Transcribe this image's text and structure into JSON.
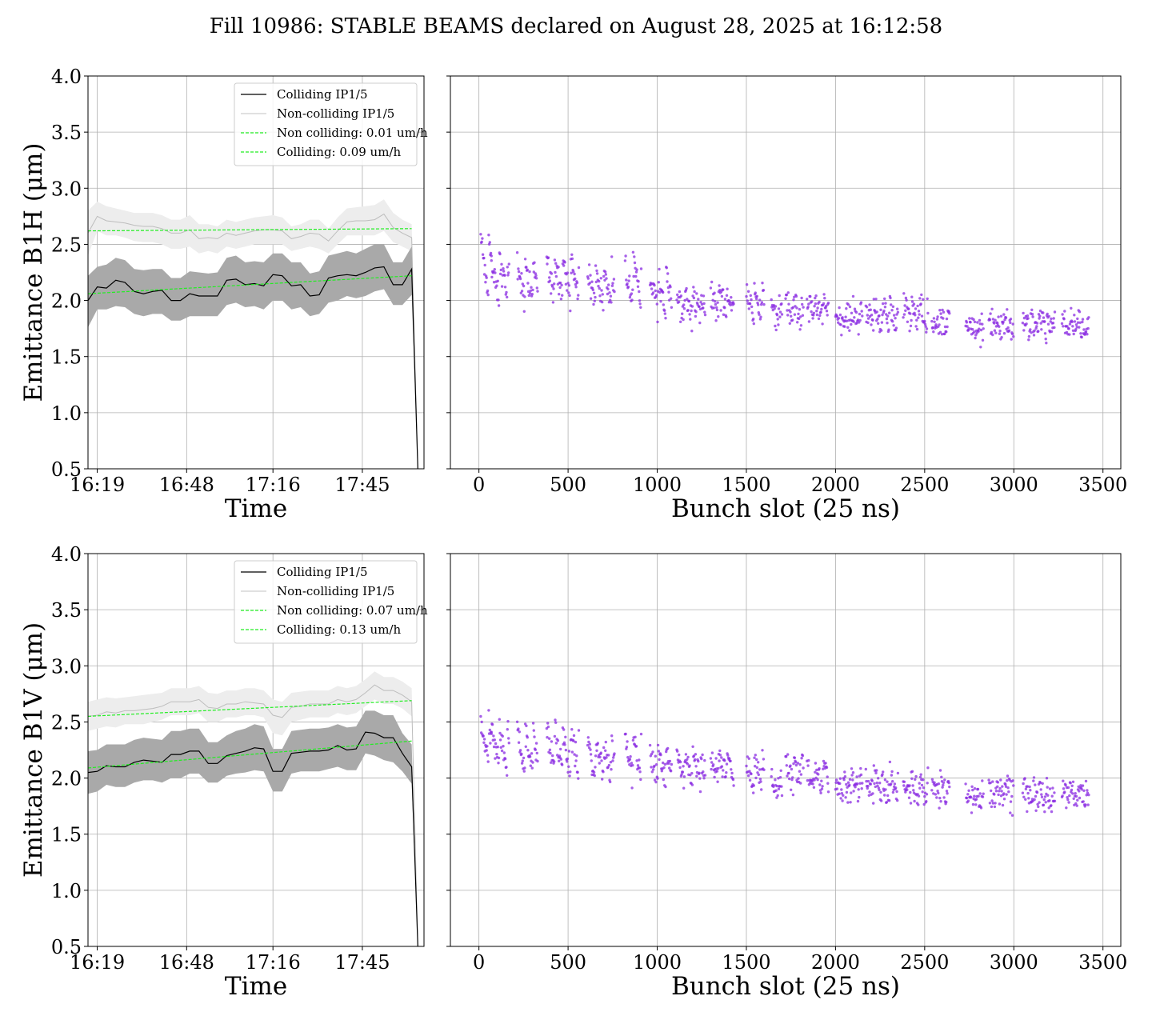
{
  "figure": {
    "title": "Fill 10986: STABLE BEAMS declared on August 28, 2025 at 16:12:58"
  },
  "colors": {
    "colliding": "#000000",
    "colliding_band": "#a9a9a9",
    "non_colliding": "#bdbdbd",
    "non_colliding_band": "#ededed",
    "fit": "#22ee22",
    "scatter": "#8a2be2",
    "grid": "#b0b0b0"
  },
  "chart_data": [
    {
      "type": "line",
      "name": "time-b1h",
      "xlabel": "Time",
      "ylabel": "Emittance B1H (μm)",
      "ylim": [
        0.5,
        4.0
      ],
      "yticks": [
        "0.5",
        "1.0",
        "1.5",
        "2.0",
        "2.5",
        "3.0",
        "3.5",
        "4.0"
      ],
      "xlim": [
        -3,
        106
      ],
      "xticks": [
        {
          "x": 0,
          "label": "16:19"
        },
        {
          "x": 29,
          "label": "16:48"
        },
        {
          "x": 57,
          "label": "17:16"
        },
        {
          "x": 86,
          "label": "17:45"
        }
      ],
      "grid": true,
      "legend": {
        "position": "top-right",
        "entries": [
          {
            "label": "Colliding IP1/5",
            "style": "colliding"
          },
          {
            "label": "Non-colliding IP1/5",
            "style": "non_colliding"
          },
          {
            "label": "Non colliding: 0.01 um/h",
            "style": "fit"
          },
          {
            "label": "Colliding: 0.09 um/h",
            "style": "fit"
          }
        ]
      },
      "x": [
        -3,
        0,
        3,
        6,
        9,
        12,
        15,
        18,
        21,
        24,
        27,
        30,
        33,
        36,
        39,
        42,
        45,
        48,
        51,
        54,
        57,
        60,
        63,
        66,
        69,
        72,
        75,
        78,
        81,
        84,
        87,
        90,
        93,
        96,
        99,
        102,
        104
      ],
      "series": [
        {
          "role": "colliding",
          "mean": [
            2.0,
            2.12,
            2.11,
            2.18,
            2.16,
            2.08,
            2.06,
            2.08,
            2.09,
            2.0,
            2.0,
            2.06,
            2.04,
            2.04,
            2.04,
            2.18,
            2.19,
            2.14,
            2.15,
            2.13,
            2.23,
            2.22,
            2.13,
            2.14,
            2.04,
            2.05,
            2.2,
            2.22,
            2.23,
            2.22,
            2.25,
            2.29,
            2.3,
            2.14,
            2.14,
            2.28,
            0.5
          ],
          "lower": [
            1.76,
            1.92,
            1.92,
            1.95,
            1.94,
            1.88,
            1.86,
            1.88,
            1.88,
            1.82,
            1.82,
            1.86,
            1.86,
            1.86,
            1.86,
            1.96,
            1.98,
            1.94,
            1.95,
            1.92,
            2.0,
            2.0,
            1.92,
            1.94,
            1.86,
            1.88,
            1.98,
            2.0,
            2.04,
            2.02,
            2.04,
            2.08,
            2.1,
            1.96,
            1.96,
            2.05,
            0.5
          ],
          "upper": [
            2.22,
            2.3,
            2.32,
            2.38,
            2.36,
            2.28,
            2.27,
            2.28,
            2.28,
            2.2,
            2.2,
            2.26,
            2.25,
            2.24,
            2.25,
            2.38,
            2.4,
            2.34,
            2.35,
            2.34,
            2.42,
            2.42,
            2.34,
            2.34,
            2.24,
            2.26,
            2.4,
            2.42,
            2.44,
            2.42,
            2.46,
            2.5,
            2.5,
            2.34,
            2.34,
            2.48,
            0.5
          ]
        },
        {
          "role": "non_colliding",
          "mean": [
            2.6,
            2.75,
            2.71,
            2.7,
            2.69,
            2.67,
            2.66,
            2.66,
            2.64,
            2.6,
            2.6,
            2.63,
            2.55,
            2.56,
            2.55,
            2.6,
            2.58,
            2.6,
            2.62,
            2.63,
            2.63,
            2.62,
            2.55,
            2.57,
            2.6,
            2.59,
            2.53,
            2.62,
            2.7,
            2.71,
            2.71,
            2.72,
            2.77,
            2.65,
            2.6,
            2.56,
            0.5
          ],
          "lower": [
            2.4,
            2.62,
            2.58,
            2.58,
            2.56,
            2.53,
            2.52,
            2.52,
            2.5,
            2.46,
            2.46,
            2.48,
            2.42,
            2.44,
            2.42,
            2.48,
            2.46,
            2.48,
            2.5,
            2.5,
            2.5,
            2.5,
            2.44,
            2.46,
            2.48,
            2.46,
            2.42,
            2.5,
            2.58,
            2.58,
            2.58,
            2.58,
            2.62,
            2.52,
            2.48,
            2.44,
            0.5
          ],
          "upper": [
            2.8,
            2.88,
            2.84,
            2.82,
            2.8,
            2.78,
            2.78,
            2.78,
            2.76,
            2.72,
            2.72,
            2.76,
            2.68,
            2.68,
            2.66,
            2.72,
            2.7,
            2.72,
            2.74,
            2.75,
            2.76,
            2.74,
            2.66,
            2.68,
            2.72,
            2.72,
            2.64,
            2.74,
            2.82,
            2.83,
            2.84,
            2.85,
            2.9,
            2.78,
            2.72,
            2.68,
            0.5
          ]
        }
      ],
      "fits": [
        {
          "role": "non_colliding",
          "x": [
            -3,
            102
          ],
          "y": [
            2.62,
            2.64
          ]
        },
        {
          "role": "colliding",
          "x": [
            -3,
            102
          ],
          "y": [
            2.06,
            2.22
          ]
        }
      ]
    },
    {
      "type": "scatter",
      "name": "bunch-b1h",
      "xlabel": "Bunch slot (25 ns)",
      "ylim": [
        0.5,
        4.0
      ],
      "xlim": [
        -160,
        3600
      ],
      "xticks": [
        0,
        500,
        1000,
        1500,
        2000,
        2500,
        3000,
        3500
      ],
      "grid": true,
      "trains": [
        [
          10,
          70,
          2.55,
          1.95
        ],
        [
          70,
          170,
          2.35,
          2.0
        ],
        [
          215,
          330,
          2.3,
          1.95
        ],
        [
          380,
          560,
          2.35,
          2.0
        ],
        [
          610,
          760,
          2.25,
          1.95
        ],
        [
          820,
          910,
          2.35,
          1.95
        ],
        [
          960,
          1080,
          2.2,
          1.9
        ],
        [
          1110,
          1270,
          2.05,
          1.85
        ],
        [
          1300,
          1430,
          2.1,
          1.9
        ],
        [
          1500,
          1600,
          2.1,
          1.85
        ],
        [
          1640,
          1700,
          1.95,
          1.8
        ],
        [
          1720,
          1820,
          2.0,
          1.8
        ],
        [
          1840,
          1960,
          2.0,
          1.85
        ],
        [
          2000,
          2150,
          1.9,
          1.8
        ],
        [
          2170,
          2350,
          1.95,
          1.8
        ],
        [
          2380,
          2520,
          1.95,
          1.8
        ],
        [
          2540,
          2640,
          1.85,
          1.75
        ],
        [
          2730,
          2830,
          1.8,
          1.72
        ],
        [
          2860,
          3000,
          1.82,
          1.72
        ],
        [
          3050,
          3230,
          1.82,
          1.73
        ],
        [
          3270,
          3420,
          1.83,
          1.72
        ]
      ],
      "spread": 0.1
    },
    {
      "type": "line",
      "name": "time-b1v",
      "xlabel": "Time",
      "ylabel": "Emittance B1V (μm)",
      "ylim": [
        0.5,
        4.0
      ],
      "yticks": [
        "0.5",
        "1.0",
        "1.5",
        "2.0",
        "2.5",
        "3.0",
        "3.5",
        "4.0"
      ],
      "xlim": [
        -3,
        106
      ],
      "xticks": [
        {
          "x": 0,
          "label": "16:19"
        },
        {
          "x": 29,
          "label": "16:48"
        },
        {
          "x": 57,
          "label": "17:16"
        },
        {
          "x": 86,
          "label": "17:45"
        }
      ],
      "grid": true,
      "legend": {
        "position": "top-right",
        "entries": [
          {
            "label": "Colliding IP1/5",
            "style": "colliding"
          },
          {
            "label": "Non-colliding IP1/5",
            "style": "non_colliding"
          },
          {
            "label": "Non colliding: 0.07 um/h",
            "style": "fit"
          },
          {
            "label": "Colliding: 0.13 um/h",
            "style": "fit"
          }
        ]
      },
      "x": [
        -3,
        0,
        3,
        6,
        9,
        12,
        15,
        18,
        21,
        24,
        27,
        30,
        33,
        36,
        39,
        42,
        45,
        48,
        51,
        54,
        57,
        60,
        63,
        66,
        69,
        72,
        75,
        78,
        81,
        84,
        87,
        90,
        93,
        96,
        99,
        102,
        104
      ],
      "series": [
        {
          "role": "colliding",
          "mean": [
            2.05,
            2.06,
            2.11,
            2.1,
            2.1,
            2.14,
            2.16,
            2.15,
            2.14,
            2.21,
            2.21,
            2.24,
            2.24,
            2.13,
            2.13,
            2.2,
            2.22,
            2.24,
            2.27,
            2.26,
            2.06,
            2.06,
            2.22,
            2.23,
            2.24,
            2.24,
            2.25,
            2.29,
            2.25,
            2.26,
            2.41,
            2.4,
            2.36,
            2.36,
            2.22,
            2.1,
            0.5
          ],
          "lower": [
            1.86,
            1.88,
            1.94,
            1.92,
            1.92,
            1.96,
            1.98,
            1.98,
            1.96,
            2.0,
            2.0,
            2.04,
            2.04,
            1.96,
            1.96,
            2.02,
            2.04,
            2.05,
            2.07,
            2.06,
            1.88,
            1.88,
            2.04,
            2.06,
            2.06,
            2.06,
            2.08,
            2.1,
            2.07,
            2.07,
            2.22,
            2.2,
            2.16,
            2.14,
            2.06,
            1.95,
            0.5
          ],
          "upper": [
            2.24,
            2.25,
            2.3,
            2.3,
            2.3,
            2.34,
            2.36,
            2.35,
            2.34,
            2.42,
            2.42,
            2.44,
            2.44,
            2.32,
            2.32,
            2.38,
            2.42,
            2.44,
            2.48,
            2.46,
            2.26,
            2.26,
            2.42,
            2.43,
            2.44,
            2.44,
            2.45,
            2.48,
            2.45,
            2.46,
            2.6,
            2.6,
            2.56,
            2.56,
            2.4,
            2.3,
            0.5
          ]
        },
        {
          "role": "non_colliding",
          "mean": [
            2.55,
            2.56,
            2.59,
            2.58,
            2.6,
            2.6,
            2.61,
            2.62,
            2.64,
            2.68,
            2.68,
            2.68,
            2.7,
            2.63,
            2.62,
            2.66,
            2.66,
            2.68,
            2.67,
            2.66,
            2.56,
            2.54,
            2.63,
            2.64,
            2.66,
            2.66,
            2.66,
            2.7,
            2.68,
            2.7,
            2.76,
            2.83,
            2.78,
            2.78,
            2.74,
            2.68,
            0.5
          ],
          "lower": [
            2.42,
            2.44,
            2.46,
            2.45,
            2.48,
            2.48,
            2.48,
            2.5,
            2.52,
            2.56,
            2.56,
            2.56,
            2.58,
            2.5,
            2.5,
            2.54,
            2.54,
            2.56,
            2.56,
            2.54,
            2.4,
            2.38,
            2.5,
            2.52,
            2.54,
            2.54,
            2.54,
            2.58,
            2.56,
            2.58,
            2.64,
            2.7,
            2.66,
            2.66,
            2.62,
            2.55,
            0.5
          ],
          "upper": [
            2.68,
            2.7,
            2.72,
            2.71,
            2.72,
            2.73,
            2.74,
            2.75,
            2.76,
            2.8,
            2.8,
            2.8,
            2.82,
            2.76,
            2.75,
            2.78,
            2.78,
            2.8,
            2.8,
            2.78,
            2.7,
            2.68,
            2.76,
            2.77,
            2.78,
            2.78,
            2.78,
            2.82,
            2.8,
            2.82,
            2.88,
            2.95,
            2.9,
            2.9,
            2.86,
            2.8,
            0.5
          ]
        }
      ],
      "fits": [
        {
          "role": "non_colliding",
          "x": [
            -3,
            102
          ],
          "y": [
            2.55,
            2.69
          ]
        },
        {
          "role": "colliding",
          "x": [
            -3,
            102
          ],
          "y": [
            2.09,
            2.33
          ]
        }
      ]
    },
    {
      "type": "scatter",
      "name": "bunch-b1v",
      "xlabel": "Bunch slot (25 ns)",
      "ylim": [
        0.5,
        4.0
      ],
      "xlim": [
        -160,
        3600
      ],
      "xticks": [
        0,
        500,
        1000,
        1500,
        2000,
        2500,
        3000,
        3500
      ],
      "grid": true,
      "trains": [
        [
          10,
          70,
          2.5,
          2.15
        ],
        [
          70,
          170,
          2.45,
          2.1
        ],
        [
          215,
          330,
          2.4,
          2.05
        ],
        [
          380,
          560,
          2.4,
          2.05
        ],
        [
          610,
          760,
          2.3,
          2.0
        ],
        [
          820,
          910,
          2.35,
          2.0
        ],
        [
          960,
          1080,
          2.25,
          1.95
        ],
        [
          1110,
          1270,
          2.2,
          1.95
        ],
        [
          1300,
          1430,
          2.2,
          2.0
        ],
        [
          1500,
          1600,
          2.15,
          1.95
        ],
        [
          1640,
          1700,
          2.0,
          1.9
        ],
        [
          1720,
          1820,
          2.15,
          1.95
        ],
        [
          1840,
          1960,
          2.1,
          1.9
        ],
        [
          2000,
          2150,
          1.98,
          1.86
        ],
        [
          2170,
          2350,
          2.0,
          1.85
        ],
        [
          2380,
          2520,
          2.0,
          1.85
        ],
        [
          2540,
          2640,
          1.95,
          1.8
        ],
        [
          2730,
          2830,
          1.9,
          1.8
        ],
        [
          2860,
          3000,
          1.92,
          1.8
        ],
        [
          3050,
          3230,
          1.9,
          1.8
        ],
        [
          3270,
          3420,
          1.92,
          1.8
        ]
      ],
      "spread": 0.1
    }
  ]
}
